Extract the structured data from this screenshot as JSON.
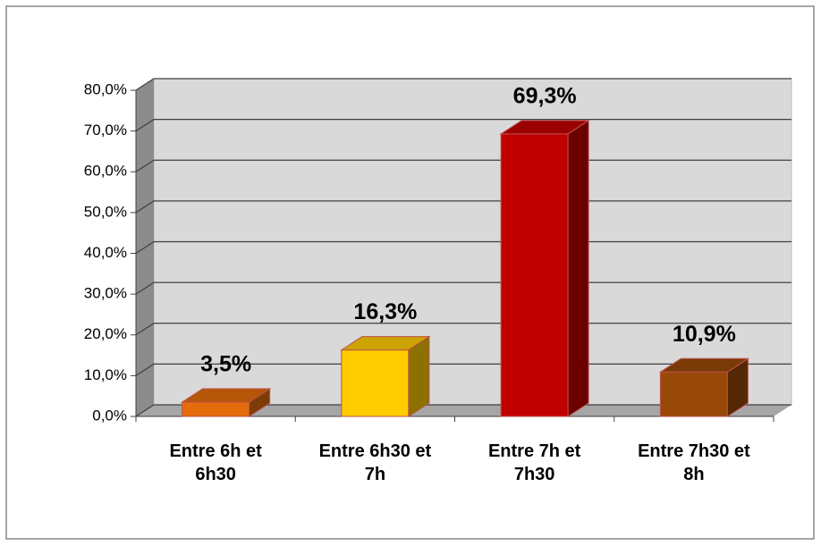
{
  "chart_data": {
    "type": "bar3d",
    "categories": [
      "Entre 6h et 6h30",
      "Entre 6h30 et 7h",
      "Entre 7h et 7h30",
      "Entre 7h30 et 8h"
    ],
    "values": [
      3.5,
      16.3,
      69.3,
      10.9
    ],
    "value_labels": [
      "3,5%",
      "16,3%",
      "69,3%",
      "10,9%"
    ],
    "colors": [
      "#e46c0a",
      "#ffcc00",
      "#c00000",
      "#984807"
    ],
    "ylim": [
      0,
      80
    ],
    "yticks": [
      {
        "value": 0,
        "label": "0,0%"
      },
      {
        "value": 10,
        "label": "10,0%"
      },
      {
        "value": 20,
        "label": "20,0%"
      },
      {
        "value": 30,
        "label": "30,0%"
      },
      {
        "value": 40,
        "label": "40,0%"
      },
      {
        "value": 50,
        "label": "50,0%"
      },
      {
        "value": 60,
        "label": "60,0%"
      },
      {
        "value": 70,
        "label": "70,0%"
      },
      {
        "value": 80,
        "label": "80,0%"
      }
    ],
    "grid": true
  }
}
